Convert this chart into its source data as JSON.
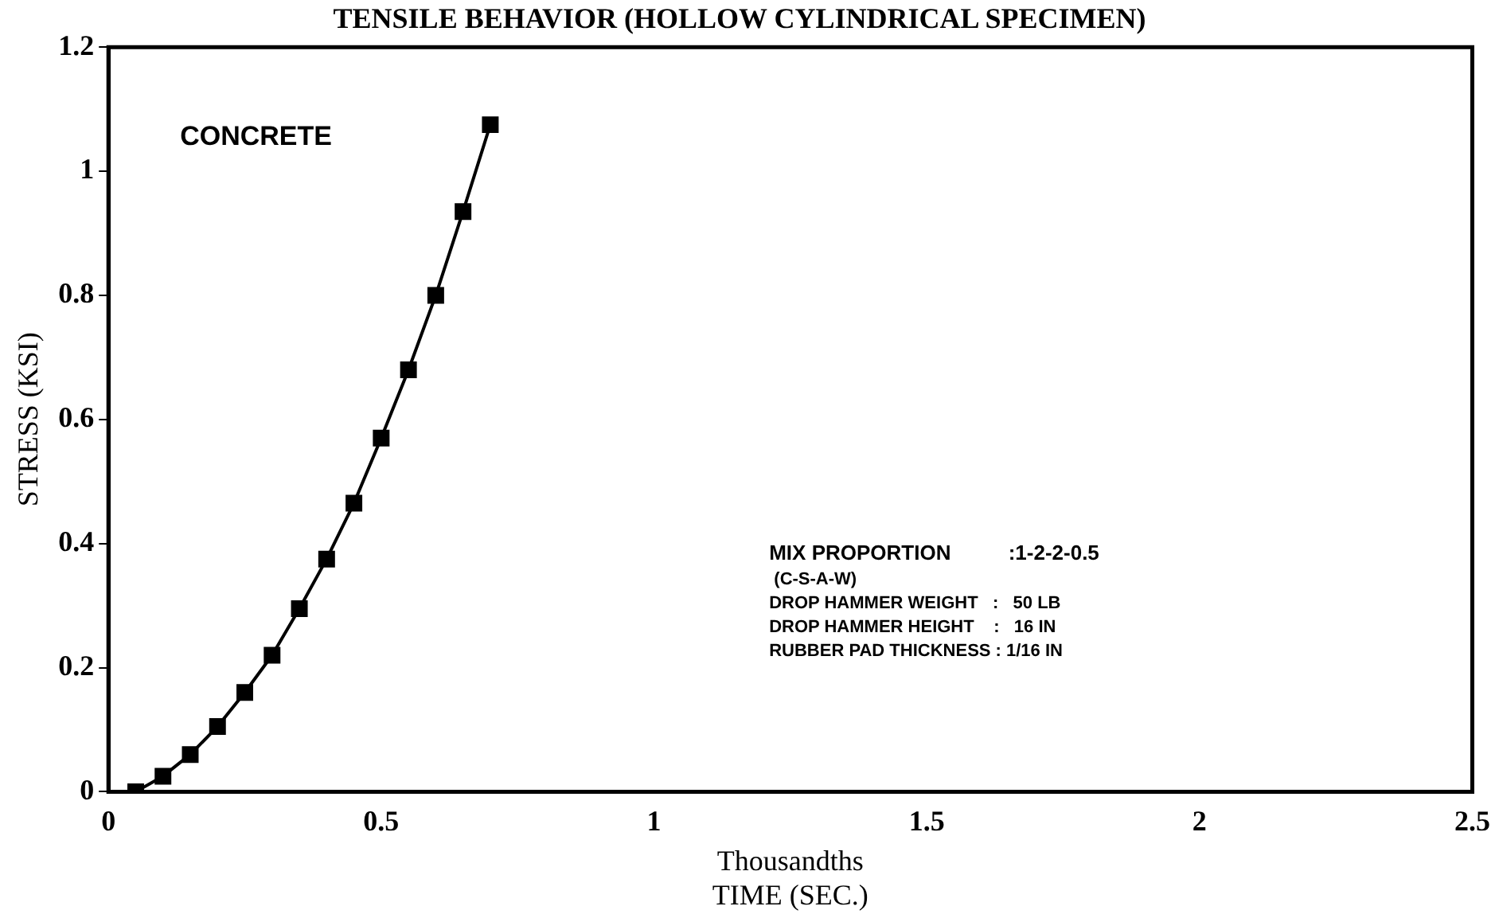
{
  "chart_data": {
    "type": "line",
    "title": "TENSILE BEHAVIOR (HOLLOW CYLINDRICAL SPECIMEN)",
    "xlabel": "Thousandths\nTIME (SEC.)",
    "ylabel": "STRESS (KSI)",
    "x": [
      0.05,
      0.1,
      0.15,
      0.2,
      0.25,
      0.3,
      0.35,
      0.4,
      0.45,
      0.5,
      0.55,
      0.6,
      0.65,
      0.7
    ],
    "series": [
      {
        "color": "#000000",
        "values": [
          0,
          0.025,
          0.06,
          0.105,
          0.16,
          0.22,
          0.295,
          0.375,
          0.465,
          0.57,
          0.68,
          0.8,
          0.935,
          1.075
        ]
      }
    ],
    "xlim": [
      0,
      2.5
    ],
    "xticks": [
      0,
      0.5,
      1,
      1.5,
      2,
      2.5
    ],
    "ylim": [
      0,
      1.2
    ],
    "yticks": [
      0,
      0.2,
      0.4,
      0.6,
      0.8,
      1,
      1.2
    ],
    "marker": "square",
    "line_style": "solid",
    "grid": false,
    "legend": false,
    "annotations": [
      "CONCRETE",
      "MIX PROPORTION          :1-2-2-0.5",
      " (C-S-A-W)",
      "DROP HAMMER WEIGHT   :   50 LB",
      "DROP HAMMER HEIGHT    :   16 IN",
      "RUBBER PAD THICKNESS : 1/16 IN"
    ]
  }
}
